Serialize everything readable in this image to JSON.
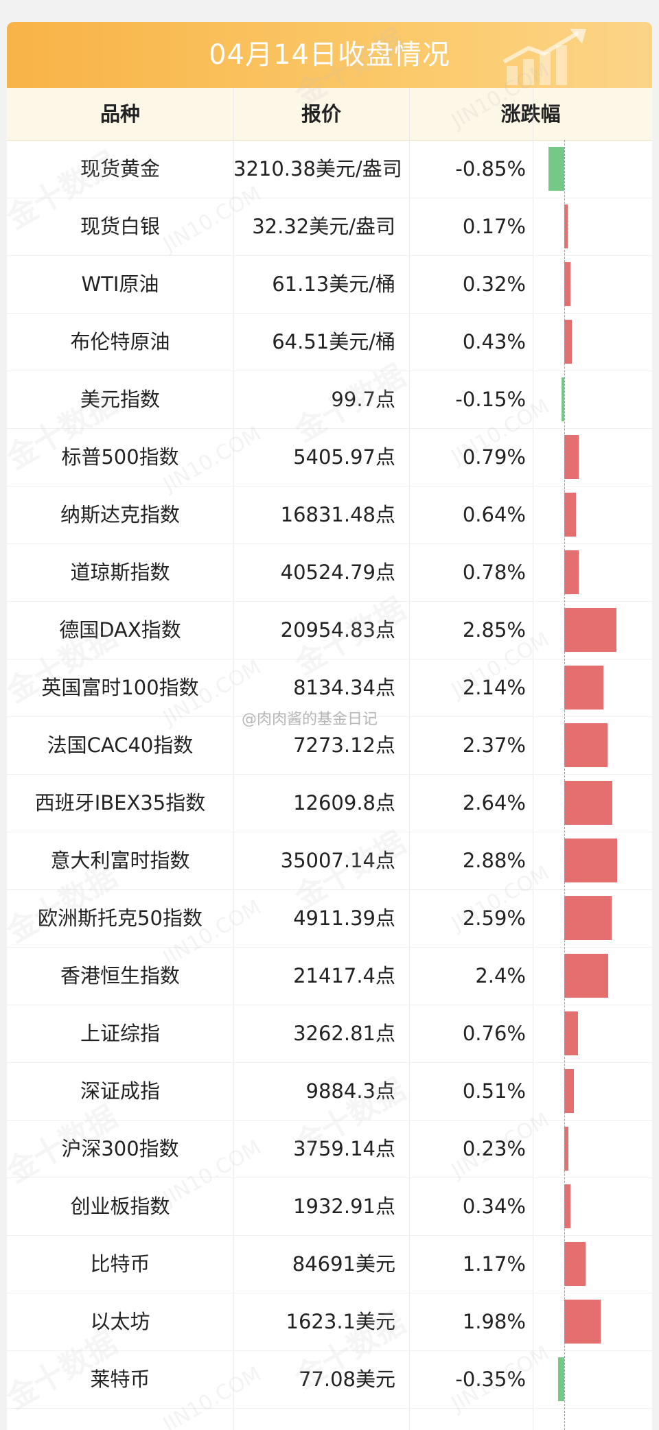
{
  "title": "04月14日收盘情况",
  "headers": {
    "name": "品种",
    "price": "报价",
    "change": "涨跌幅"
  },
  "watermark": {
    "brand": "金十数据",
    "site": "JIN10.COM"
  },
  "credit": "@肉肉酱的基金日记",
  "colors": {
    "up": "#e46f6f",
    "down": "#74c987",
    "banner": "#f8b347",
    "header_bg": "#fdf7e7"
  },
  "chart_data": {
    "type": "bar",
    "title": "04月14日收盘情况",
    "xlabel": "",
    "ylabel": "涨跌幅",
    "categories": [
      "现货黄金",
      "现货白银",
      "WTI原油",
      "布伦特原油",
      "美元指数",
      "标普500指数",
      "纳斯达克指数",
      "道琼斯指数",
      "德国DAX指数",
      "英国富时100指数",
      "法国CAC40指数",
      "西班牙IBEX35指数",
      "意大利富时指数",
      "欧洲斯托克50指数",
      "香港恒生指数",
      "上证综指",
      "深证成指",
      "沪深300指数",
      "创业板指数",
      "比特币",
      "以太坊",
      "莱特币"
    ],
    "values": [
      -0.85,
      0.17,
      0.32,
      0.43,
      -0.15,
      0.79,
      0.64,
      0.78,
      2.85,
      2.14,
      2.37,
      2.64,
      2.88,
      2.59,
      2.4,
      0.76,
      0.51,
      0.23,
      0.34,
      1.17,
      1.98,
      -0.35
    ],
    "ylim": [
      -0.9,
      3.0
    ],
    "grid": false,
    "legend": "none"
  },
  "rows": [
    {
      "name": "现货黄金",
      "price": "3210.38美元/盎司",
      "change": "-0.85%"
    },
    {
      "name": "现货白银",
      "price": "32.32美元/盎司",
      "change": "0.17%"
    },
    {
      "name": "WTI原油",
      "price": "61.13美元/桶",
      "change": "0.32%"
    },
    {
      "name": "布伦特原油",
      "price": "64.51美元/桶",
      "change": "0.43%"
    },
    {
      "name": "美元指数",
      "price": "99.7点",
      "change": "-0.15%"
    },
    {
      "name": "标普500指数",
      "price": "5405.97点",
      "change": "0.79%"
    },
    {
      "name": "纳斯达克指数",
      "price": "16831.48点",
      "change": "0.64%"
    },
    {
      "name": "道琼斯指数",
      "price": "40524.79点",
      "change": "0.78%"
    },
    {
      "name": "德国DAX指数",
      "price": "20954.83点",
      "change": "2.85%"
    },
    {
      "name": "英国富时100指数",
      "price": "8134.34点",
      "change": "2.14%"
    },
    {
      "name": "法国CAC40指数",
      "price": "7273.12点",
      "change": "2.37%"
    },
    {
      "name": "西班牙IBEX35指数",
      "price": "12609.8点",
      "change": "2.64%"
    },
    {
      "name": "意大利富时指数",
      "price": "35007.14点",
      "change": "2.88%"
    },
    {
      "name": "欧洲斯托克50指数",
      "price": "4911.39点",
      "change": "2.59%"
    },
    {
      "name": "香港恒生指数",
      "price": "21417.4点",
      "change": "2.4%"
    },
    {
      "name": "上证综指",
      "price": "3262.81点",
      "change": "0.76%"
    },
    {
      "name": "深证成指",
      "price": "9884.3点",
      "change": "0.51%"
    },
    {
      "name": "沪深300指数",
      "price": "3759.14点",
      "change": "0.23%"
    },
    {
      "name": "创业板指数",
      "price": "1932.91点",
      "change": "0.34%"
    },
    {
      "name": "比特币",
      "price": "84691美元",
      "change": "1.17%"
    },
    {
      "name": "以太坊",
      "price": "1623.1美元",
      "change": "1.98%"
    },
    {
      "name": "莱特币",
      "price": "77.08美元",
      "change": "-0.35%"
    }
  ]
}
